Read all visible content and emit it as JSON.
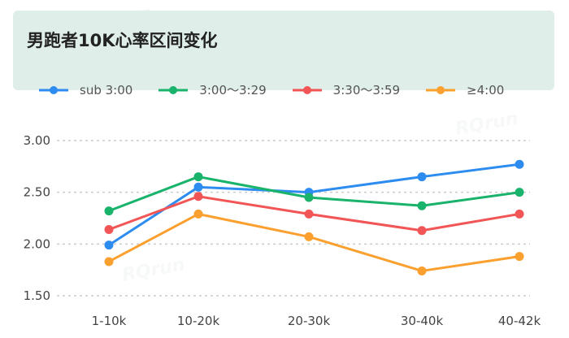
{
  "watermark": "RQrun",
  "chart_data": {
    "type": "line",
    "title": "男跑者10K心率区间变化",
    "categories": [
      "1-10k",
      "10-20k",
      "20-30k",
      "30-40k",
      "40-42k"
    ],
    "yticks": [
      "1.50",
      "2.00",
      "2.50",
      "3.00"
    ],
    "ylim": [
      1.5,
      3.0
    ],
    "grid": true,
    "legend_position": "top-left",
    "series": [
      {
        "name": "sub 3:00",
        "color": "#2d8cf0",
        "values": [
          1.99,
          2.55,
          2.5,
          2.65,
          2.77
        ]
      },
      {
        "name": "3:00～3:29",
        "color": "#19b36b",
        "values": [
          2.32,
          2.65,
          2.45,
          2.37,
          2.5
        ]
      },
      {
        "name": "3:30～3:59",
        "color": "#f25555",
        "values": [
          2.14,
          2.46,
          2.29,
          2.13,
          2.29
        ]
      },
      {
        "name": "≥4:00",
        "color": "#fba02e",
        "values": [
          1.83,
          2.29,
          2.07,
          1.74,
          1.88
        ]
      }
    ]
  }
}
